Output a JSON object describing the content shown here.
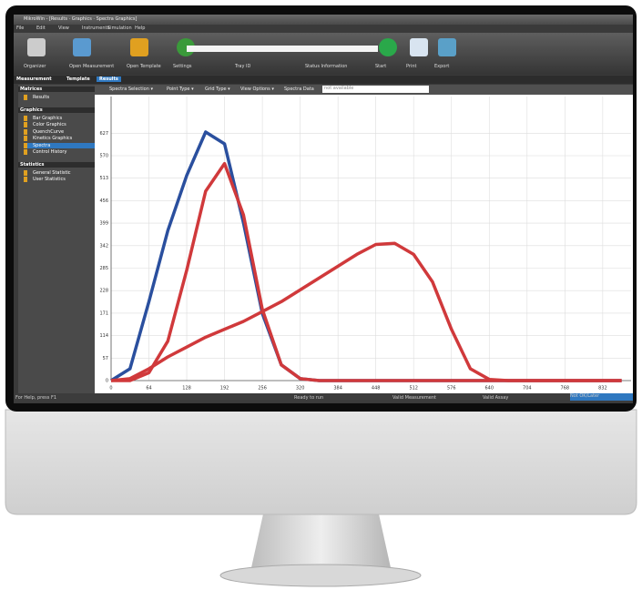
{
  "window": {
    "title": "MikroWin - [Results · Graphics · Spectra Graphics]"
  },
  "menu": [
    "File",
    "Edit",
    "View",
    "Instruments",
    "Simulation",
    "Help"
  ],
  "toolbar": [
    "Organizer",
    "Open Measurement",
    "Open Template",
    "Settings",
    "Tray ID",
    "Status Information",
    "Start",
    "Print",
    "Export"
  ],
  "tabs": [
    "Measurement",
    "Template",
    "Results"
  ],
  "sidebar": [
    {
      "title": "Matrices",
      "items": [
        "Results"
      ]
    },
    {
      "title": "Graphics",
      "items": [
        "Bar Graphics",
        "Color Graphics",
        "QuenchCurve",
        "Kinetics Graphics",
        "Spectra",
        "Control History"
      ]
    },
    {
      "title": "Statistics",
      "items": [
        "General Statistic",
        "User Statistics"
      ]
    }
  ],
  "chart_toolbar": {
    "items": [
      "Spectra Selection ▾",
      "Point Type ▾",
      "Grid Type ▾",
      "View Options ▾",
      "Spectra Data"
    ],
    "field": "not available"
  },
  "chart_data": {
    "type": "line",
    "x": [
      0,
      32,
      64,
      96,
      128,
      160,
      192,
      224,
      256,
      288,
      320,
      352,
      384,
      416,
      448,
      480,
      512,
      544,
      576,
      608,
      640,
      672,
      704,
      736,
      768,
      800,
      832,
      864
    ],
    "series": [
      {
        "color": "#2a4f9e",
        "values": [
          0,
          30,
          200,
          380,
          520,
          630,
          600,
          400,
          170,
          40,
          5,
          0,
          0,
          0,
          0,
          0,
          0,
          0,
          0,
          0,
          0,
          0,
          0,
          0,
          0,
          0,
          0,
          0
        ]
      },
      {
        "color": "#d0393b",
        "values": [
          0,
          0,
          20,
          100,
          280,
          480,
          550,
          420,
          180,
          40,
          5,
          0,
          0,
          0,
          0,
          0,
          0,
          0,
          0,
          0,
          0,
          0,
          0,
          0,
          0,
          0,
          0,
          0
        ]
      },
      {
        "color": "#d0393b",
        "values": [
          0,
          5,
          30,
          60,
          85,
          110,
          130,
          150,
          175,
          200,
          230,
          260,
          290,
          320,
          345,
          348,
          320,
          250,
          130,
          30,
          3,
          0,
          0,
          0,
          0,
          0,
          0,
          0
        ]
      }
    ],
    "xlim": [
      0,
      880
    ],
    "ylim": [
      0,
      720
    ],
    "xticks": [
      0,
      64,
      128,
      192,
      256,
      320,
      384,
      448,
      512,
      576,
      640,
      704,
      768,
      832
    ],
    "yticks": [
      0,
      57,
      114,
      171,
      228,
      285,
      342,
      399,
      456,
      513,
      570,
      627
    ],
    "grid": true
  },
  "status_bar": [
    "For Help, press F1",
    "Ready to run",
    "Valid Measurement",
    "Valid Assay",
    "Not OK/Later"
  ]
}
